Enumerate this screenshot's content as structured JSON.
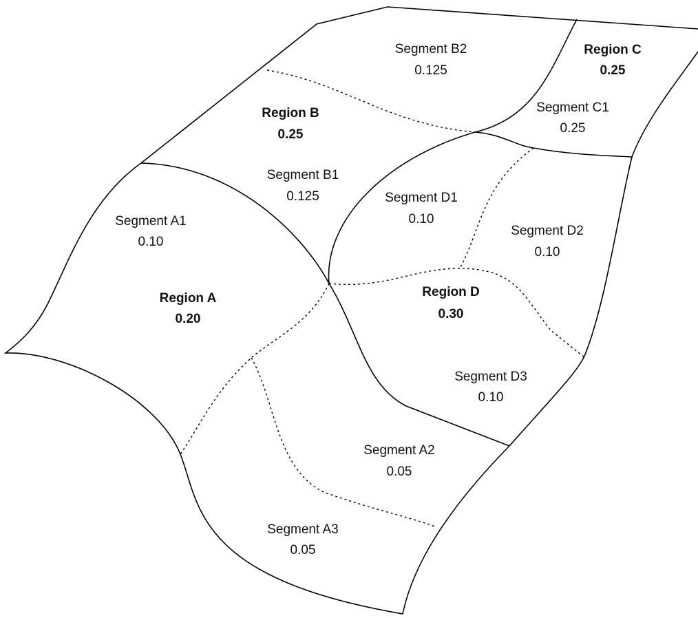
{
  "regions": [
    {
      "name": "Region A",
      "value": "0.20",
      "segments": [
        {
          "name": "Segment A1",
          "value": "0.10"
        },
        {
          "name": "Segment A2",
          "value": "0.05"
        },
        {
          "name": "Segment A3",
          "value": "0.05"
        }
      ]
    },
    {
      "name": "Region B",
      "value": "0.25",
      "segments": [
        {
          "name": "Segment B1",
          "value": "0.125"
        },
        {
          "name": "Segment B2",
          "value": "0.125"
        }
      ]
    },
    {
      "name": "Region C",
      "value": "0.25",
      "segments": [
        {
          "name": "Segment C1",
          "value": "0.25"
        }
      ]
    },
    {
      "name": "Region D",
      "value": "0.30",
      "segments": [
        {
          "name": "Segment D1",
          "value": "0.10"
        },
        {
          "name": "Segment D2",
          "value": "0.10"
        },
        {
          "name": "Segment D3",
          "value": "0.10"
        }
      ]
    }
  ]
}
